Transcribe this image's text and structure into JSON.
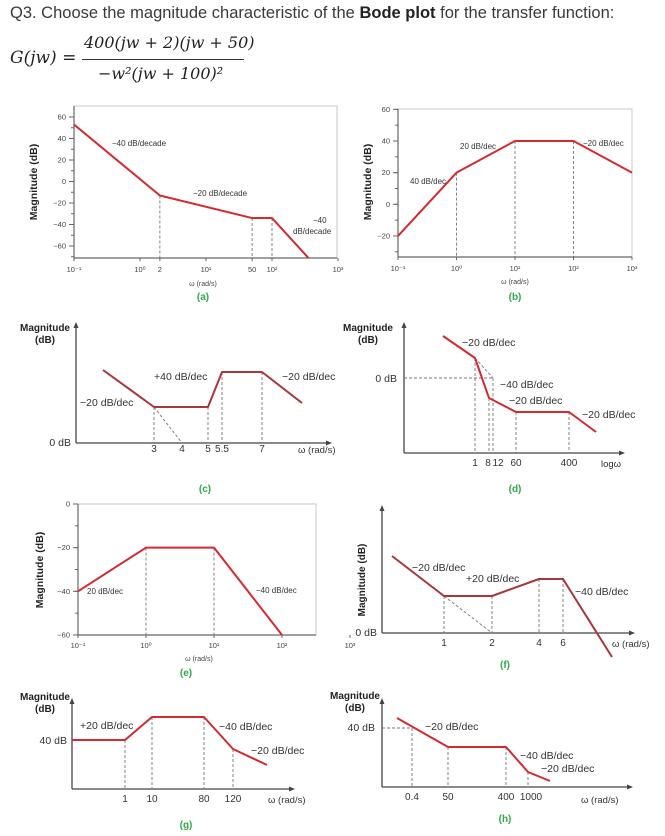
{
  "question": {
    "prefix": "Q3. Choose the magnitude characteristic of the ",
    "bold": "Bode plot",
    "suffix": " for the transfer function:",
    "lhs": "G(jw) =",
    "numerator": "400(jw + 2)(jw + 50)",
    "denominator": "−w²(jw + 100)²"
  },
  "colors": {
    "curve": "#d42a2f",
    "curve_dark": "#a8363a",
    "caption": "#2ea84a",
    "dashed": "#777777"
  },
  "chart_data": [
    {
      "id": "a",
      "caption": "(a)",
      "type": "line",
      "x_scale": "log",
      "xlabel": "ω (rad/s)",
      "ylabel": "Magnitude (dB)",
      "xlim": [
        0.1,
        1000
      ],
      "ylim": [
        -70,
        65
      ],
      "x_ticks": [
        "10⁻¹",
        "10⁰",
        "2",
        "10¹",
        "50",
        "10²",
        "10³"
      ],
      "y_ticks": [
        "60",
        "40",
        "20",
        "0",
        "−20",
        "−40",
        "−60"
      ],
      "points": [
        [
          0.1,
          53
        ],
        [
          2,
          -13
        ],
        [
          50,
          -34
        ],
        [
          100,
          -34
        ],
        [
          355,
          -71
        ]
      ],
      "annotations": [
        "−40 dB/decade",
        "−20 dB/decade",
        "−40",
        "dB/decade"
      ]
    },
    {
      "id": "b",
      "caption": "(b)",
      "type": "line",
      "x_scale": "log",
      "xlabel": "ω (rad/s)",
      "ylabel": "Magnitude (dB)",
      "xlim": [
        0.1,
        1000
      ],
      "ylim": [
        -30,
        60
      ],
      "x_ticks": [
        "10⁻¹",
        "10⁰",
        "10¹",
        "10²",
        "10³"
      ],
      "y_ticks": [
        "60",
        "40",
        "20",
        "0",
        "−20"
      ],
      "points": [
        [
          0.1,
          -20
        ],
        [
          1,
          20
        ],
        [
          10,
          40
        ],
        [
          100,
          40
        ],
        [
          1000,
          20
        ]
      ],
      "annotations": [
        "40 dB/dec",
        "20 dB/dec",
        "−20 dB/dec"
      ]
    },
    {
      "id": "c",
      "caption": "(c)",
      "type": "line",
      "x_scale": "schematic",
      "xlabel": "ω (rad/s)",
      "ylabel": [
        "Magnitude",
        "(dB)"
      ],
      "zero_label": "0 dB",
      "breakpoints": [
        3,
        4,
        5,
        5.5,
        7
      ],
      "x_ticks": [
        "3",
        "4",
        "5",
        "5.5",
        "7"
      ],
      "slopes": [
        "−20 dB/dec",
        "+40 dB/dec",
        "−20 dB/dec"
      ]
    },
    {
      "id": "d",
      "caption": "(d)",
      "type": "line",
      "x_scale": "schematic",
      "xlabel": "logω",
      "ylabel": [
        "Magnitude",
        "(dB)"
      ],
      "zero_label": "0 dB",
      "breakpoints": [
        1,
        8,
        12,
        60,
        400
      ],
      "x_ticks": [
        "1",
        "8",
        "12",
        "60",
        "400"
      ],
      "slopes": [
        "−20 dB/dec",
        "−40 dB/dec",
        "−20 dB/dec",
        "−20 dB/dec"
      ]
    },
    {
      "id": "e",
      "caption": "(e)",
      "type": "line",
      "x_scale": "log",
      "xlabel": "ω (rad/s)",
      "ylabel": "Magnitude (dB)",
      "xlim": [
        0.1,
        1000
      ],
      "ylim": [
        -60,
        0
      ],
      "x_ticks": [
        "10⁻¹",
        "10⁰",
        "10¹",
        "10²",
        "10³"
      ],
      "y_ticks": [
        "0",
        "−20",
        "−40",
        "−60"
      ],
      "points": [
        [
          0.1,
          -40
        ],
        [
          1,
          -20
        ],
        [
          10,
          -20
        ],
        [
          100,
          -60
        ]
      ],
      "annotations": [
        "20 dB/dec",
        "−40 dB/dec"
      ]
    },
    {
      "id": "f",
      "caption": "(f)",
      "type": "line",
      "x_scale": "schematic",
      "xlabel": "ω (rad/s)",
      "ylabel": "Magnitude (dB)",
      "zero_label": "0 dB",
      "breakpoints": [
        1,
        2,
        4,
        6
      ],
      "x_ticks": [
        "1",
        "2",
        "4",
        "6"
      ],
      "slopes": [
        "−20 dB/dec",
        "+20 dB/dec",
        "−40 dB/dec"
      ]
    },
    {
      "id": "g",
      "caption": "(g)",
      "type": "line",
      "x_scale": "schematic",
      "xlabel": "ω (rad/s)",
      "ylabel": [
        "Magnitude",
        "(dB)"
      ],
      "level_label": "40 dB",
      "breakpoints": [
        1,
        10,
        80,
        120
      ],
      "x_ticks": [
        "1",
        "10",
        "80",
        "120"
      ],
      "slopes": [
        "+20 dB/dec",
        "−40 dB/dec",
        "−20 dB/dec"
      ]
    },
    {
      "id": "h",
      "caption": "(h)",
      "type": "line",
      "x_scale": "schematic",
      "xlabel": "ω (rad/s)",
      "ylabel": [
        "Magnitude",
        "(dB)"
      ],
      "level_label": "40 dB",
      "breakpoints": [
        0.4,
        50,
        400,
        1000
      ],
      "x_ticks": [
        "0.4",
        "50",
        "400",
        "1000"
      ],
      "slopes": [
        "−20 dB/dec",
        "−40 dB/dec",
        "−20 dB/dec"
      ]
    }
  ]
}
